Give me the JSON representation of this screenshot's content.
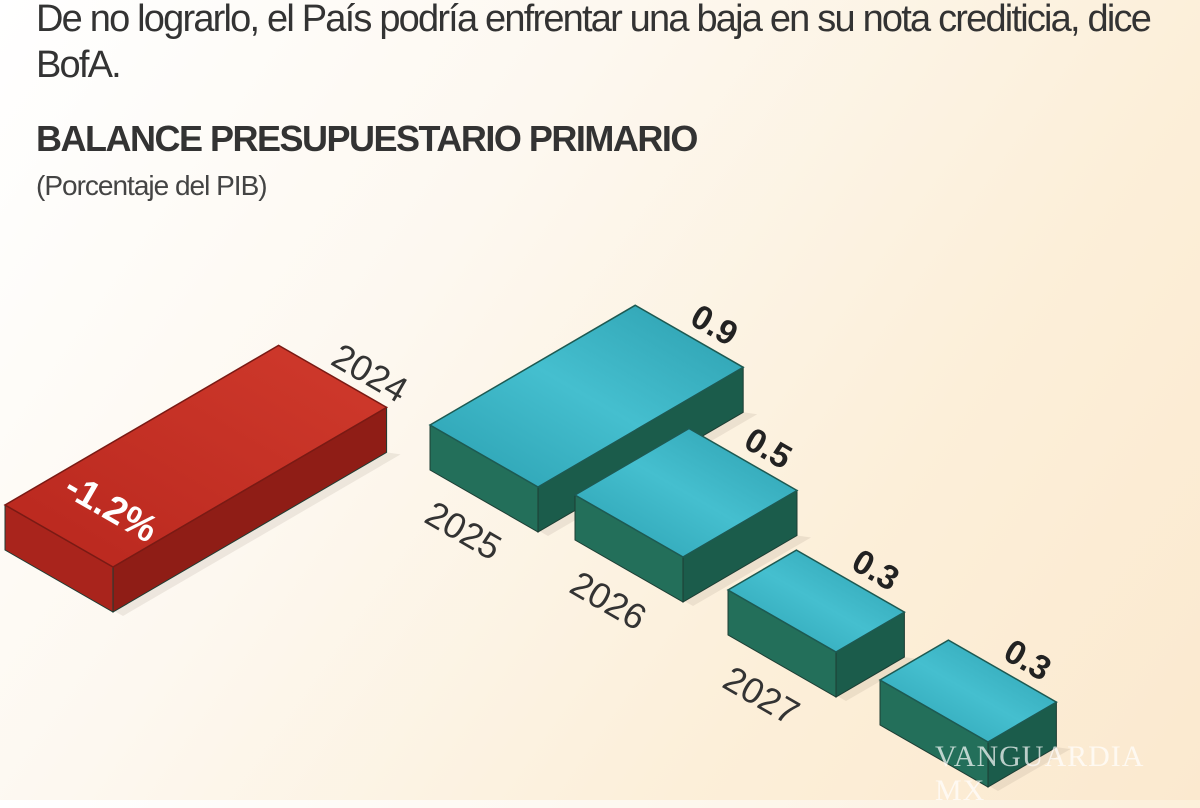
{
  "intro_text": "De no lograrlo, el País podría enfrentar una baja en su nota crediticia, dice BofA.",
  "watermark": "VANGUARDIA MX",
  "chart_data": {
    "type": "bar",
    "title": "BALANCE  PRESUPUESTARIO PRIMARIO",
    "subtitle": "(Porcentaje del PIB)",
    "categories": [
      "2024",
      "2025",
      "2026",
      "2027",
      ""
    ],
    "values": [
      -1.2,
      0.9,
      0.5,
      0.3,
      0.3
    ],
    "value_labels": [
      "-1.2%",
      "0.9",
      "0.5",
      "0.3",
      "0.3"
    ],
    "style": "3d isometric blocks",
    "colors": {
      "negative": "#c8322a",
      "positive": "#35aebf",
      "positive_side": "#1f6b58"
    }
  }
}
